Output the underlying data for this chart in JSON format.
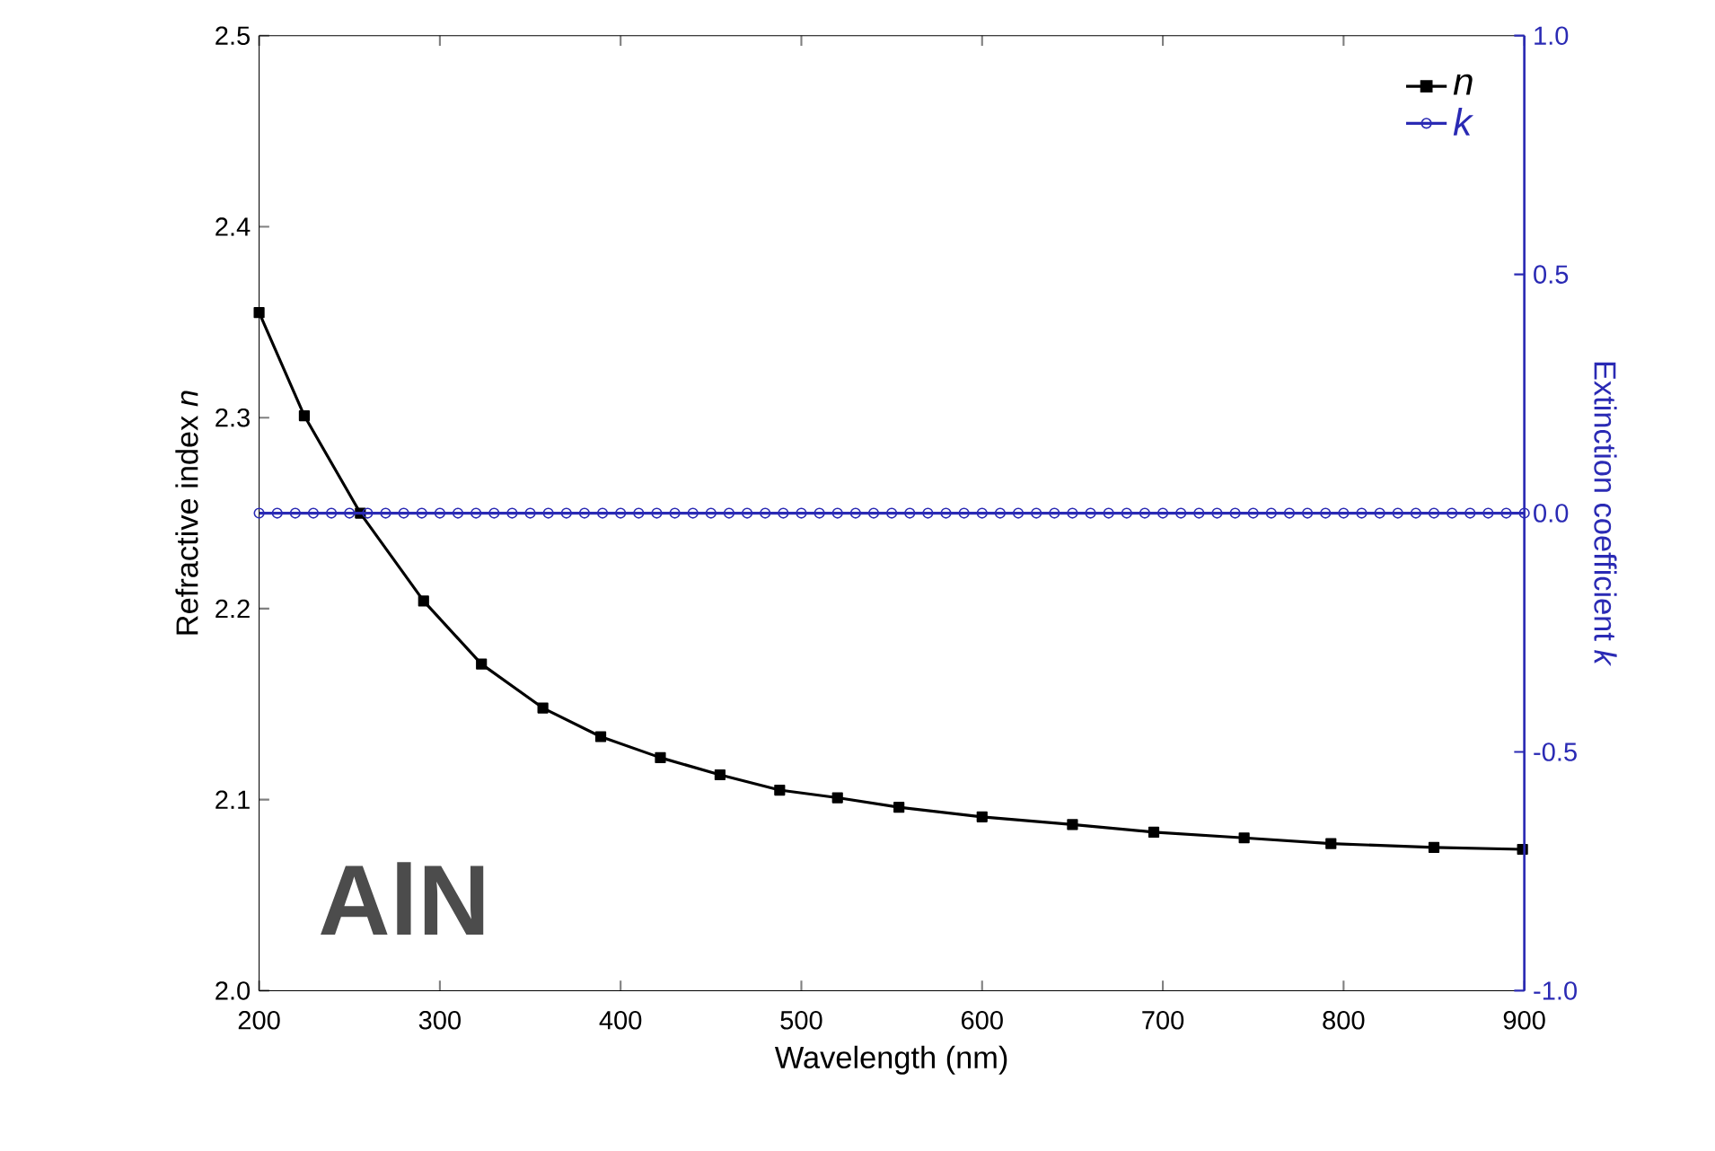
{
  "chart_data": {
    "type": "line",
    "xlabel": "Wavelength (nm)",
    "ylabel": "Refractive index *n*",
    "y2label": "Extinction coefficient *k*",
    "xlim": [
      200,
      900
    ],
    "xticks": [
      200,
      300,
      400,
      500,
      600,
      700,
      800,
      900
    ],
    "ylim": [
      2.0,
      2.5
    ],
    "yticks": [
      {
        "value": 2.0,
        "label": "2.0"
      },
      2.1,
      2.2,
      2.3,
      2.4,
      2.5
    ],
    "y2lim": [
      -1.0,
      1.0
    ],
    "y2ticks": [
      {
        "value": -1.0,
        "label": "-1.0"
      },
      -0.5,
      {
        "value": 0.0,
        "label": "0.0"
      },
      0.5,
      {
        "value": 1.0,
        "label": "1.0"
      }
    ],
    "legend": "top right",
    "grid": false,
    "annotations": [
      "AlN"
    ],
    "series": [
      {
        "name": "n",
        "color": "#000000",
        "marker": "square",
        "x": [
          200,
          225,
          256,
          291,
          323,
          357,
          389,
          422,
          455,
          488,
          520,
          554,
          600,
          650,
          695,
          745,
          793,
          850,
          899
        ],
        "values": [
          2.355,
          2.301,
          2.25,
          2.204,
          2.171,
          2.148,
          2.133,
          2.122,
          2.113,
          2.105,
          2.101,
          2.096,
          2.091,
          2.087,
          2.083,
          2.08,
          2.077,
          2.075,
          2.074
        ]
      },
      {
        "name": "k",
        "color": "#2a2ab4",
        "marker": "circle",
        "axis": "y2",
        "x": [
          200,
          210,
          220,
          230,
          240,
          250,
          260,
          270,
          280,
          290,
          300,
          310,
          320,
          330,
          340,
          350,
          360,
          370,
          380,
          390,
          400,
          410,
          420,
          430,
          440,
          450,
          460,
          470,
          480,
          490,
          500,
          510,
          520,
          530,
          540,
          550,
          560,
          570,
          580,
          590,
          600,
          610,
          620,
          630,
          640,
          650,
          660,
          670,
          680,
          690,
          700,
          710,
          720,
          730,
          740,
          750,
          760,
          770,
          780,
          790,
          800,
          810,
          820,
          830,
          840,
          850,
          860,
          870,
          880,
          890,
          900
        ],
        "values": [
          0,
          0,
          0,
          0,
          0,
          0,
          0,
          0,
          0,
          0,
          0,
          0,
          0,
          0,
          0,
          0,
          0,
          0,
          0,
          0,
          0,
          0,
          0,
          0,
          0,
          0,
          0,
          0,
          0,
          0,
          0,
          0,
          0,
          0,
          0,
          0,
          0,
          0,
          0,
          0,
          0,
          0,
          0,
          0,
          0,
          0,
          0,
          0,
          0,
          0,
          0,
          0,
          0,
          0,
          0,
          0,
          0,
          0,
          0,
          0,
          0,
          0,
          0,
          0,
          0,
          0,
          0,
          0,
          0,
          0,
          0
        ]
      }
    ]
  }
}
